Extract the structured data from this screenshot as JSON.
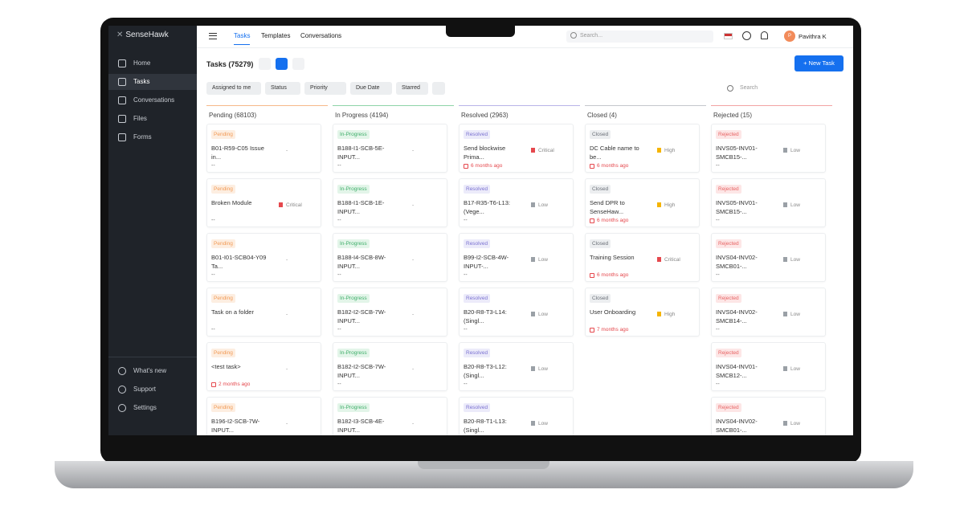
{
  "brand": "SenseHawk",
  "nav": [
    "Home",
    "Tasks",
    "Conversations",
    "Files",
    "Forms"
  ],
  "nav_bottom": [
    "What's new",
    "Support",
    "Settings"
  ],
  "tabs": [
    "Tasks",
    "Templates",
    "Conversations"
  ],
  "search_placeholder": "Search...",
  "user": {
    "initial": "P",
    "name": "Pavithra K"
  },
  "page_title": "Tasks (75279)",
  "new_task": "New Task",
  "filters": [
    "Assigned to me",
    "Status",
    "Priority",
    "Due Date",
    "Starred"
  ],
  "board_search": "Search",
  "priority_colors": {
    "Critical": "#e5484d",
    "High": "#f5b400",
    "Low": "#9aa0a6",
    "-": "#9aa0a6"
  },
  "columns": [
    {
      "title": "Pending (68103)",
      "color": "#f6b98a",
      "tag_bg": "#fdeee1",
      "tag_fg": "#f29a55",
      "cards": [
        {
          "status": "Pending",
          "name": "B01-R59-C05 Issue in...",
          "priority": "-",
          "footer": "--"
        },
        {
          "status": "Pending",
          "name": "Broken Module",
          "priority": "Critical",
          "footer": "--"
        },
        {
          "status": "Pending",
          "name": "B01-I01-SCB04-Y09 Ta...",
          "priority": "-",
          "footer": "--"
        },
        {
          "status": "Pending",
          "name": "Task on a folder",
          "priority": "-",
          "footer": "--"
        },
        {
          "status": "Pending",
          "name": "<test task>",
          "priority": "-",
          "due": "2 months ago"
        },
        {
          "status": "Pending",
          "name": "B196-I2-SCB-7W-INPUT...",
          "priority": "-",
          "footer": "--"
        }
      ]
    },
    {
      "title": "In Progress (4194)",
      "color": "#8fd3a8",
      "tag_bg": "#e3f5e9",
      "tag_fg": "#3fae6a",
      "cards": [
        {
          "status": "In-Progress",
          "name": "B188-I1-SCB-5E-INPUT...",
          "priority": "-",
          "footer": "--"
        },
        {
          "status": "In-Progress",
          "name": "B188-I1-SCB-1E-INPUT...",
          "priority": "-",
          "footer": "--"
        },
        {
          "status": "In-Progress",
          "name": "B188-I4-SCB-8W-INPUT...",
          "priority": "-",
          "footer": "--"
        },
        {
          "status": "In-Progress",
          "name": "B182-I2-SCB-7W-INPUT...",
          "priority": "-",
          "footer": "--"
        },
        {
          "status": "In-Progress",
          "name": "B182-I2-SCB-7W-INPUT...",
          "priority": "-",
          "footer": "--"
        },
        {
          "status": "In-Progress",
          "name": "B182-I3-SCB-4E-INPUT...",
          "priority": "-",
          "footer": "--"
        }
      ]
    },
    {
      "title": "Resolved (2963)",
      "color": "#b9b4e8",
      "tag_bg": "#ecebfa",
      "tag_fg": "#7b72d1",
      "cards": [
        {
          "status": "Resolved",
          "name": "Send blockwise Prima...",
          "priority": "Critical",
          "due": "6 months ago"
        },
        {
          "status": "Resolved",
          "name": "B17-R35-T6-L13: (Vege...",
          "priority": "Low",
          "footer": "--"
        },
        {
          "status": "Resolved",
          "name": "B99-I2-SCB-4W-INPUT-...",
          "priority": "Low",
          "footer": "--"
        },
        {
          "status": "Resolved",
          "name": "B20-R8-T3-L14: (Singl...",
          "priority": "Low",
          "footer": "--"
        },
        {
          "status": "Resolved",
          "name": "B20-R8-T3-L12: (Singl...",
          "priority": "Low",
          "footer": "--"
        },
        {
          "status": "Resolved",
          "name": "B20-R8-T1-L13: (Singl...",
          "priority": "Low",
          "footer": "--"
        }
      ]
    },
    {
      "title": "Closed (4)",
      "color": "#c4c7cc",
      "tag_bg": "#eceef0",
      "tag_fg": "#6b7078",
      "cards": [
        {
          "status": "Closed",
          "name": "DC Cable name to be...",
          "priority": "High",
          "due": "6 months ago"
        },
        {
          "status": "Closed",
          "name": "Send DPR to SenseHaw...",
          "priority": "High",
          "due": "6 months ago"
        },
        {
          "status": "Closed",
          "name": "Training Session",
          "priority": "Critical",
          "due": "6 months ago"
        },
        {
          "status": "Closed",
          "name": "User Onboarding",
          "priority": "High",
          "due": "7 months ago"
        }
      ]
    },
    {
      "title": "Rejected (15)",
      "color": "#f2a3a3",
      "tag_bg": "#fde6e6",
      "tag_fg": "#e76464",
      "cards": [
        {
          "status": "Rejected",
          "name": "INVS05-INV01-SMCB15-...",
          "priority": "Low",
          "footer": "--"
        },
        {
          "status": "Rejected",
          "name": "INVS05-INV01-SMCB15-...",
          "priority": "Low",
          "footer": "--"
        },
        {
          "status": "Rejected",
          "name": "INVS04-INV02-SMCB01-...",
          "priority": "Low",
          "footer": "--"
        },
        {
          "status": "Rejected",
          "name": "INVS04-INV02-SMCB14-...",
          "priority": "Low",
          "footer": "--"
        },
        {
          "status": "Rejected",
          "name": "INVS04-INV01-SMCB12-...",
          "priority": "Low",
          "footer": "--"
        },
        {
          "status": "Rejected",
          "name": "INVS04-INV02-SMCB01-...",
          "priority": "Low",
          "footer": "--"
        }
      ]
    }
  ]
}
